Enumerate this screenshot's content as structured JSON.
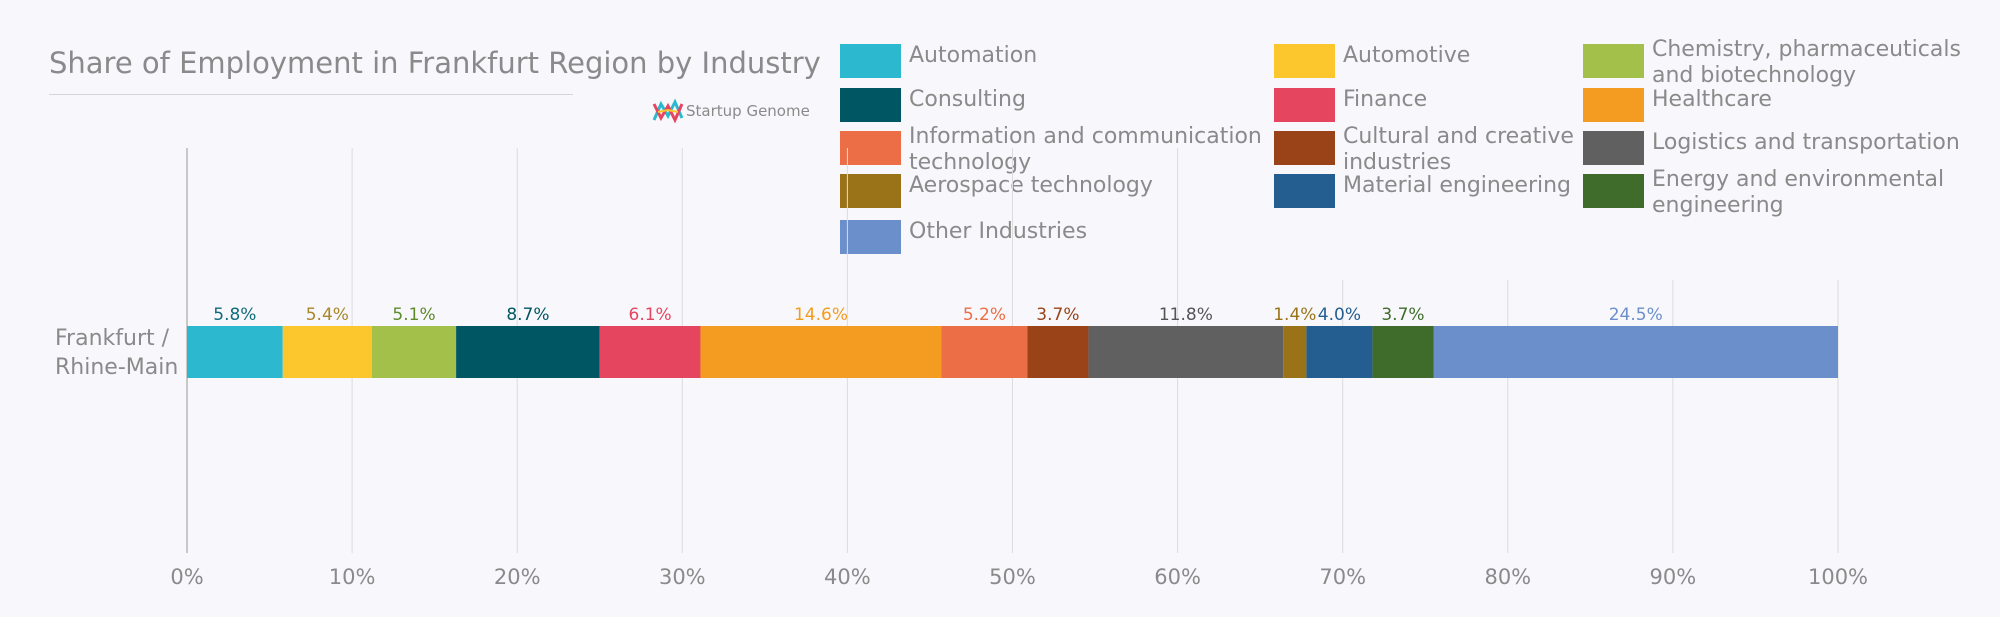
{
  "chart_data": {
    "type": "bar",
    "orientation": "horizontal",
    "stacked": true,
    "title": "Share of Employment in Frankfurt Region by Industry",
    "categories": [
      "Frankfurt / Rhine-Main"
    ],
    "category_lines": [
      "Frankfurt /",
      "Rhine-Main"
    ],
    "xlim": [
      0,
      100
    ],
    "x_ticks": [
      0,
      10,
      20,
      30,
      40,
      50,
      60,
      70,
      80,
      90,
      100
    ],
    "x_tick_labels": [
      "0%",
      "10%",
      "20%",
      "30%",
      "40%",
      "50%",
      "60%",
      "70%",
      "80%",
      "90%",
      "100%"
    ],
    "grid": true,
    "legend_position": "top-right",
    "series": [
      {
        "name": "Automation",
        "values": [
          5.8
        ],
        "label": "5.8%",
        "color": "#2cb9cf",
        "label_color": "#0f6b7a"
      },
      {
        "name": "Automotive",
        "values": [
          5.4
        ],
        "label": "5.4%",
        "color": "#fcc62d",
        "label_color": "#a8862a"
      },
      {
        "name": "Chemistry, pharmaceuticals and biotechnology",
        "values": [
          5.1
        ],
        "label": "5.1%",
        "color": "#a3c14a",
        "label_color": "#5e8a2a"
      },
      {
        "name": "Consulting",
        "values": [
          8.7
        ],
        "label": "8.7%",
        "color": "#005663",
        "label_color": "#005663"
      },
      {
        "name": "Finance",
        "values": [
          6.1
        ],
        "label": "6.1%",
        "color": "#e64560",
        "label_color": "#e64560"
      },
      {
        "name": "Healthcare",
        "values": [
          14.6
        ],
        "label": "14.6%",
        "color": "#f39c21",
        "label_color": "#f39c21"
      },
      {
        "name": "Information and communication technology",
        "values": [
          5.2
        ],
        "label": "5.2%",
        "color": "#ec6e46",
        "label_color": "#ec6e46"
      },
      {
        "name": "Cultural and creative industries",
        "values": [
          3.7
        ],
        "label": "3.7%",
        "color": "#9a4318",
        "label_color": "#9a4318"
      },
      {
        "name": "Logistics and transportation",
        "values": [
          11.8
        ],
        "label": "11.8%",
        "color": "#606060",
        "label_color": "#555555"
      },
      {
        "name": "Aerospace technology",
        "values": [
          1.4
        ],
        "label": "1.4%",
        "color": "#9a7318",
        "label_color": "#9a7318"
      },
      {
        "name": "Material engineering",
        "values": [
          4.0
        ],
        "label": "4.0%",
        "color": "#245e91",
        "label_color": "#245e91"
      },
      {
        "name": "Energy and environmental engineering",
        "values": [
          3.7
        ],
        "label": "3.7%",
        "color": "#3f6b2b",
        "label_color": "#3f6b2b"
      },
      {
        "name": "Other Industries",
        "values": [
          24.5
        ],
        "label": "24.5%",
        "color": "#6b8fca",
        "label_color": "#6b8fca"
      }
    ]
  },
  "legend": [
    {
      "lines": [
        "Automation"
      ],
      "color": "#2cb9cf"
    },
    {
      "lines": [
        "Automotive"
      ],
      "color": "#fcc62d"
    },
    {
      "lines": [
        "Chemistry, pharmaceuticals",
        "and biotechnology"
      ],
      "color": "#a3c14a"
    },
    {
      "lines": [
        "Consulting"
      ],
      "color": "#005663"
    },
    {
      "lines": [
        "Finance"
      ],
      "color": "#e64560"
    },
    {
      "lines": [
        "Healthcare"
      ],
      "color": "#f39c21"
    },
    {
      "lines": [
        "Information and communication",
        "technology"
      ],
      "color": "#ec6e46"
    },
    {
      "lines": [
        "Cultural and creative",
        "industries"
      ],
      "color": "#9a4318"
    },
    {
      "lines": [
        "Logistics and transportation"
      ],
      "color": "#606060"
    },
    {
      "lines": [
        "Aerospace technology"
      ],
      "color": "#9a7318"
    },
    {
      "lines": [
        "Material engineering"
      ],
      "color": "#245e91"
    },
    {
      "lines": [
        "Energy and environmental",
        "engineering"
      ],
      "color": "#3f6b2b"
    },
    {
      "lines": [
        "Other Industries"
      ],
      "color": "#6b8fca"
    }
  ],
  "brand": {
    "name": "Startup Genome"
  },
  "colors": {
    "text": "#8a8a8a",
    "grid": "#dcdcdc",
    "axis": "#c8c8c8",
    "background": "#f8f8fc"
  }
}
